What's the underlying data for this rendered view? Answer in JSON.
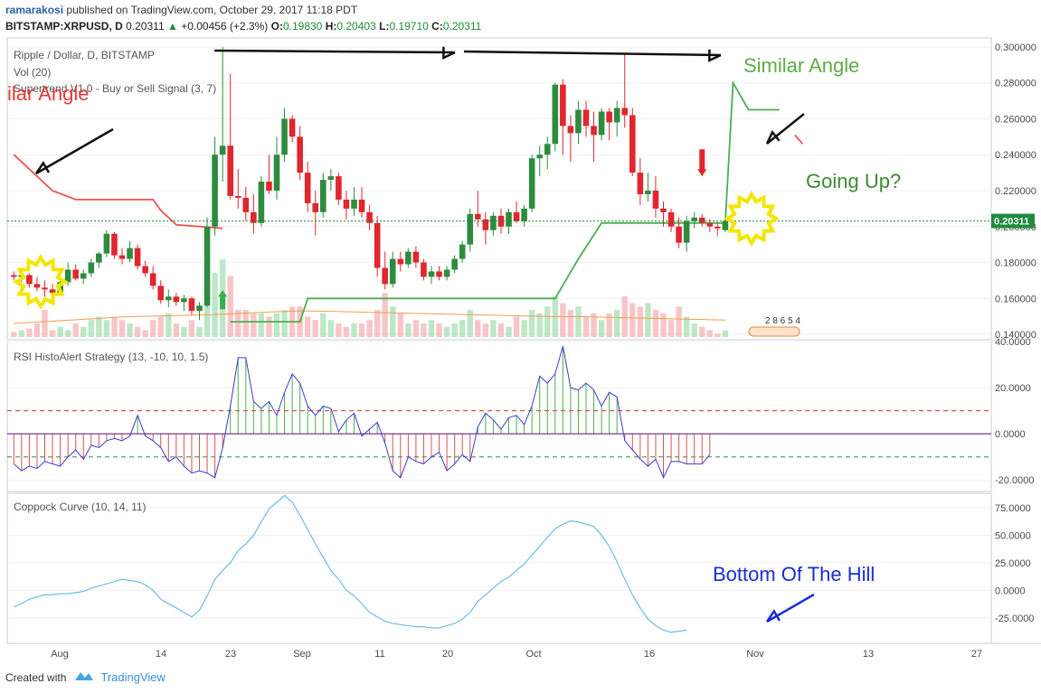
{
  "header": {
    "user": "ramarakosi",
    "published_text": "published on TradingView.com, October 29, 2017 11:18 PDT",
    "symbol": "BITSTAMP:XRPUSD, D",
    "last": "0.20311",
    "change": "+0.00456 (+2.3%)",
    "o_label": "O:",
    "o_val": "0.19830",
    "h_label": "H:",
    "h_val": "0.20403",
    "l_label": "L:",
    "l_val": "0.19710",
    "c_label": "C:",
    "c_val": "0.20311"
  },
  "footer": {
    "created_with": "Created with",
    "brand": "TradingView"
  },
  "colors": {
    "up": "#2e8b3e",
    "down": "#e0262e",
    "supertrend_up": "#4caf50",
    "supertrend_down": "#ef5350",
    "rsi_line": "#3b3bd6",
    "coppock": "#5fb8e8",
    "grid": "#eef1f5",
    "axis_text": "#4a4a4a"
  },
  "chart_data": [
    {
      "type": "candlestick",
      "title": "Ripple / Dollar, D, BITSTAMP",
      "indicator_labels": [
        "Vol (20)",
        "Supertrend V1.0 - Buy or Sell Signal (3, 7)"
      ],
      "y_ticks": [
        "0.300000",
        "0.280000",
        "0.260000",
        "0.240000",
        "0.220000",
        "0.200000",
        "0.180000",
        "0.160000",
        "0.140000"
      ],
      "ylim": [
        0.137,
        0.305
      ],
      "current_price_label": "0.20311",
      "x_tick_labels": [
        "Aug",
        "14",
        "23",
        "Sep",
        "11",
        "20",
        "Oct",
        "16",
        "Nov",
        "13",
        "27"
      ],
      "candles_ohlc": [
        [
          0.173,
          0.175,
          0.17,
          0.172
        ],
        [
          0.172,
          0.176,
          0.169,
          0.173
        ],
        [
          0.173,
          0.174,
          0.166,
          0.168
        ],
        [
          0.168,
          0.172,
          0.164,
          0.166
        ],
        [
          0.166,
          0.17,
          0.161,
          0.165
        ],
        [
          0.165,
          0.168,
          0.16,
          0.163
        ],
        [
          0.163,
          0.17,
          0.162,
          0.169
        ],
        [
          0.169,
          0.18,
          0.167,
          0.176
        ],
        [
          0.176,
          0.179,
          0.17,
          0.171
        ],
        [
          0.171,
          0.176,
          0.168,
          0.174
        ],
        [
          0.174,
          0.182,
          0.172,
          0.18
        ],
        [
          0.18,
          0.186,
          0.177,
          0.185
        ],
        [
          0.185,
          0.198,
          0.183,
          0.196
        ],
        [
          0.196,
          0.197,
          0.182,
          0.184
        ],
        [
          0.184,
          0.188,
          0.179,
          0.182
        ],
        [
          0.182,
          0.192,
          0.18,
          0.188
        ],
        [
          0.188,
          0.19,
          0.176,
          0.178
        ],
        [
          0.178,
          0.181,
          0.172,
          0.174
        ],
        [
          0.174,
          0.178,
          0.165,
          0.167
        ],
        [
          0.167,
          0.17,
          0.157,
          0.159
        ],
        [
          0.159,
          0.165,
          0.155,
          0.161
        ],
        [
          0.161,
          0.163,
          0.156,
          0.158
        ],
        [
          0.158,
          0.162,
          0.153,
          0.16
        ],
        [
          0.16,
          0.161,
          0.151,
          0.153
        ],
        [
          0.153,
          0.158,
          0.148,
          0.156
        ],
        [
          0.156,
          0.205,
          0.155,
          0.2
        ],
        [
          0.2,
          0.25,
          0.195,
          0.24
        ],
        [
          0.24,
          0.3,
          0.225,
          0.245
        ],
        [
          0.245,
          0.285,
          0.215,
          0.217
        ],
        [
          0.217,
          0.232,
          0.21,
          0.216
        ],
        [
          0.216,
          0.222,
          0.203,
          0.208
        ],
        [
          0.208,
          0.218,
          0.196,
          0.202
        ],
        [
          0.202,
          0.228,
          0.2,
          0.225
        ],
        [
          0.225,
          0.24,
          0.218,
          0.22
        ],
        [
          0.22,
          0.25,
          0.215,
          0.24
        ],
        [
          0.24,
          0.266,
          0.236,
          0.26
        ],
        [
          0.26,
          0.262,
          0.247,
          0.25
        ],
        [
          0.25,
          0.256,
          0.226,
          0.23
        ],
        [
          0.23,
          0.236,
          0.208,
          0.213
        ],
        [
          0.213,
          0.22,
          0.195,
          0.208
        ],
        [
          0.208,
          0.23,
          0.205,
          0.226
        ],
        [
          0.226,
          0.232,
          0.22,
          0.228
        ],
        [
          0.228,
          0.23,
          0.212,
          0.215
        ],
        [
          0.215,
          0.22,
          0.204,
          0.21
        ],
        [
          0.21,
          0.222,
          0.206,
          0.215
        ],
        [
          0.215,
          0.222,
          0.205,
          0.208
        ],
        [
          0.208,
          0.212,
          0.198,
          0.202
        ],
        [
          0.202,
          0.206,
          0.172,
          0.177
        ],
        [
          0.177,
          0.186,
          0.165,
          0.168
        ],
        [
          0.168,
          0.186,
          0.166,
          0.182
        ],
        [
          0.182,
          0.186,
          0.175,
          0.179
        ],
        [
          0.179,
          0.188,
          0.177,
          0.186
        ],
        [
          0.186,
          0.189,
          0.177,
          0.18
        ],
        [
          0.18,
          0.182,
          0.17,
          0.172
        ],
        [
          0.172,
          0.178,
          0.168,
          0.175
        ],
        [
          0.175,
          0.178,
          0.17,
          0.172
        ],
        [
          0.172,
          0.178,
          0.17,
          0.176
        ],
        [
          0.176,
          0.184,
          0.174,
          0.182
        ],
        [
          0.182,
          0.192,
          0.18,
          0.19
        ],
        [
          0.19,
          0.21,
          0.186,
          0.207
        ],
        [
          0.207,
          0.22,
          0.2,
          0.204
        ],
        [
          0.204,
          0.208,
          0.19,
          0.198
        ],
        [
          0.198,
          0.208,
          0.195,
          0.206
        ],
        [
          0.206,
          0.21,
          0.196,
          0.2
        ],
        [
          0.2,
          0.21,
          0.196,
          0.208
        ],
        [
          0.208,
          0.214,
          0.202,
          0.203
        ],
        [
          0.203,
          0.212,
          0.2,
          0.21
        ],
        [
          0.21,
          0.24,
          0.208,
          0.238
        ],
        [
          0.238,
          0.245,
          0.228,
          0.24
        ],
        [
          0.24,
          0.25,
          0.232,
          0.246
        ],
        [
          0.246,
          0.28,
          0.242,
          0.279
        ],
        [
          0.279,
          0.282,
          0.24,
          0.256
        ],
        [
          0.256,
          0.262,
          0.236,
          0.252
        ],
        [
          0.252,
          0.27,
          0.246,
          0.265
        ],
        [
          0.265,
          0.27,
          0.25,
          0.256
        ],
        [
          0.256,
          0.264,
          0.236,
          0.251
        ],
        [
          0.251,
          0.266,
          0.248,
          0.264
        ],
        [
          0.264,
          0.266,
          0.248,
          0.258
        ],
        [
          0.258,
          0.27,
          0.25,
          0.266
        ],
        [
          0.266,
          0.296,
          0.255,
          0.262
        ],
        [
          0.262,
          0.266,
          0.228,
          0.23
        ],
        [
          0.23,
          0.238,
          0.212,
          0.218
        ],
        [
          0.218,
          0.23,
          0.214,
          0.22
        ],
        [
          0.22,
          0.228,
          0.205,
          0.21
        ],
        [
          0.21,
          0.214,
          0.2,
          0.208
        ],
        [
          0.208,
          0.21,
          0.197,
          0.2
        ],
        [
          0.2,
          0.205,
          0.188,
          0.191
        ],
        [
          0.191,
          0.206,
          0.186,
          0.203
        ],
        [
          0.203,
          0.208,
          0.199,
          0.205
        ],
        [
          0.205,
          0.207,
          0.2,
          0.202
        ],
        [
          0.202,
          0.204,
          0.197,
          0.2
        ],
        [
          0.2,
          0.202,
          0.195,
          0.199
        ],
        [
          0.198,
          0.204,
          0.197,
          0.203
        ]
      ],
      "supertrend": [
        [
          0,
          0.24
        ],
        [
          5,
          0.22
        ],
        [
          8,
          0.215
        ],
        [
          18,
          0.215
        ],
        [
          19,
          0.209
        ],
        [
          21,
          0.201
        ],
        [
          27,
          0.199
        ],
        [
          28,
          0.147
        ],
        [
          37,
          0.147
        ],
        [
          38,
          0.16
        ],
        [
          70,
          0.16
        ],
        [
          73,
          0.182
        ],
        [
          76,
          0.202
        ],
        [
          92,
          0.202
        ],
        [
          93,
          0.28
        ],
        [
          95,
          0.265
        ],
        [
          99,
          0.265
        ],
        [
          101,
          0.251
        ],
        [
          102,
          0.246
        ]
      ],
      "volumes": [
        0.15,
        0.2,
        0.25,
        0.4,
        0.8,
        0.2,
        0.3,
        0.2,
        0.4,
        0.3,
        0.5,
        0.6,
        0.5,
        0.6,
        0.5,
        0.4,
        0.3,
        0.2,
        0.5,
        0.6,
        0.7,
        0.4,
        0.3,
        0.5,
        0.3,
        1.0,
        1.9,
        2.3,
        1.8,
        0.8,
        0.8,
        0.7,
        0.7,
        0.6,
        0.7,
        0.8,
        0.9,
        0.9,
        0.6,
        0.5,
        0.7,
        0.5,
        0.4,
        0.3,
        0.4,
        0.4,
        0.5,
        0.8,
        1.3,
        0.9,
        0.7,
        0.4,
        0.5,
        0.4,
        0.5,
        0.4,
        0.3,
        0.4,
        0.5,
        0.8,
        0.5,
        0.4,
        0.5,
        0.4,
        0.3,
        0.6,
        0.5,
        0.8,
        0.7,
        0.9,
        1.2,
        1.0,
        0.8,
        0.9,
        0.6,
        0.7,
        0.5,
        0.7,
        0.8,
        1.2,
        1.0,
        0.9,
        1.0,
        0.8,
        0.7,
        0.5,
        0.9,
        0.6,
        0.4,
        0.3,
        0.2,
        0.1,
        0.2
      ],
      "volume_ma": [
        0.4,
        0.45,
        0.5,
        0.55,
        0.6,
        0.62,
        0.64,
        0.66,
        0.7,
        0.74,
        0.77,
        0.76,
        0.74,
        0.72,
        0.7,
        0.68,
        0.66,
        0.64,
        0.62,
        0.6,
        0.6,
        0.58,
        0.56,
        0.54,
        0.52,
        0.5
      ],
      "counter_label": "2 8 6 5 4"
    },
    {
      "type": "histogram_line",
      "title": "RSI HistoAlert Strategy (13, -10, 10, 1.5)",
      "y_ticks": [
        "40.0000",
        "20.0000",
        "0.0000",
        "-20.0000"
      ],
      "ylim": [
        -25,
        40
      ],
      "levels": [
        10,
        0,
        -10
      ],
      "values": [
        -13,
        -16,
        -14,
        -15,
        -12,
        -13,
        -14,
        -10,
        -7,
        -11,
        -5,
        -6,
        -3,
        -2,
        -3,
        -1,
        8,
        -1,
        -3,
        -6,
        -12,
        -10,
        -14,
        -17,
        -16,
        -17,
        -19,
        -6,
        12,
        33,
        33,
        14,
        11,
        14,
        8,
        18,
        26,
        22,
        12,
        8,
        12,
        11,
        1,
        6,
        9,
        -1,
        2,
        5,
        -4,
        -16,
        -19,
        -10,
        -12,
        -13,
        -10,
        -8,
        -16,
        -13,
        -9,
        -12,
        3,
        9,
        6,
        2,
        7,
        8,
        4,
        12,
        25,
        22,
        26,
        38,
        20,
        19,
        22,
        19,
        12,
        18,
        16,
        -3,
        -7,
        -11,
        -14,
        -11,
        -19,
        -12,
        -12,
        -13,
        -13,
        -13,
        -9
      ]
    },
    {
      "type": "line",
      "title": "Coppock Curve (10, 14, 11)",
      "y_ticks": [
        "75.0000",
        "50.0000",
        "25.0000",
        "0.0000",
        "-25.0000"
      ],
      "ylim": [
        -48,
        88
      ],
      "values": [
        -15,
        -12,
        -8,
        -6,
        -4,
        -4,
        -3,
        -3,
        -2,
        -1,
        2,
        4,
        6,
        8,
        10,
        9,
        8,
        5,
        0,
        -8,
        -12,
        -16,
        -20,
        -24,
        -18,
        -5,
        10,
        18,
        25,
        36,
        42,
        50,
        62,
        74,
        80,
        86,
        80,
        68,
        55,
        42,
        30,
        18,
        10,
        0,
        -5,
        -12,
        -20,
        -24,
        -28,
        -30,
        -31,
        -32,
        -33,
        -33,
        -34,
        -34,
        -32,
        -30,
        -26,
        -20,
        -10,
        -4,
        2,
        8,
        12,
        18,
        24,
        32,
        40,
        48,
        56,
        60,
        63,
        62,
        60,
        58,
        50,
        40,
        26,
        10,
        -4,
        -16,
        -26,
        -32,
        -36,
        -38,
        -37,
        -36
      ]
    }
  ],
  "annotations": {
    "left_text": "ilar Angle",
    "right_text": "Similar Angle",
    "going_up": "Going Up?",
    "bottom_hill": "Bottom Of The Hill"
  }
}
